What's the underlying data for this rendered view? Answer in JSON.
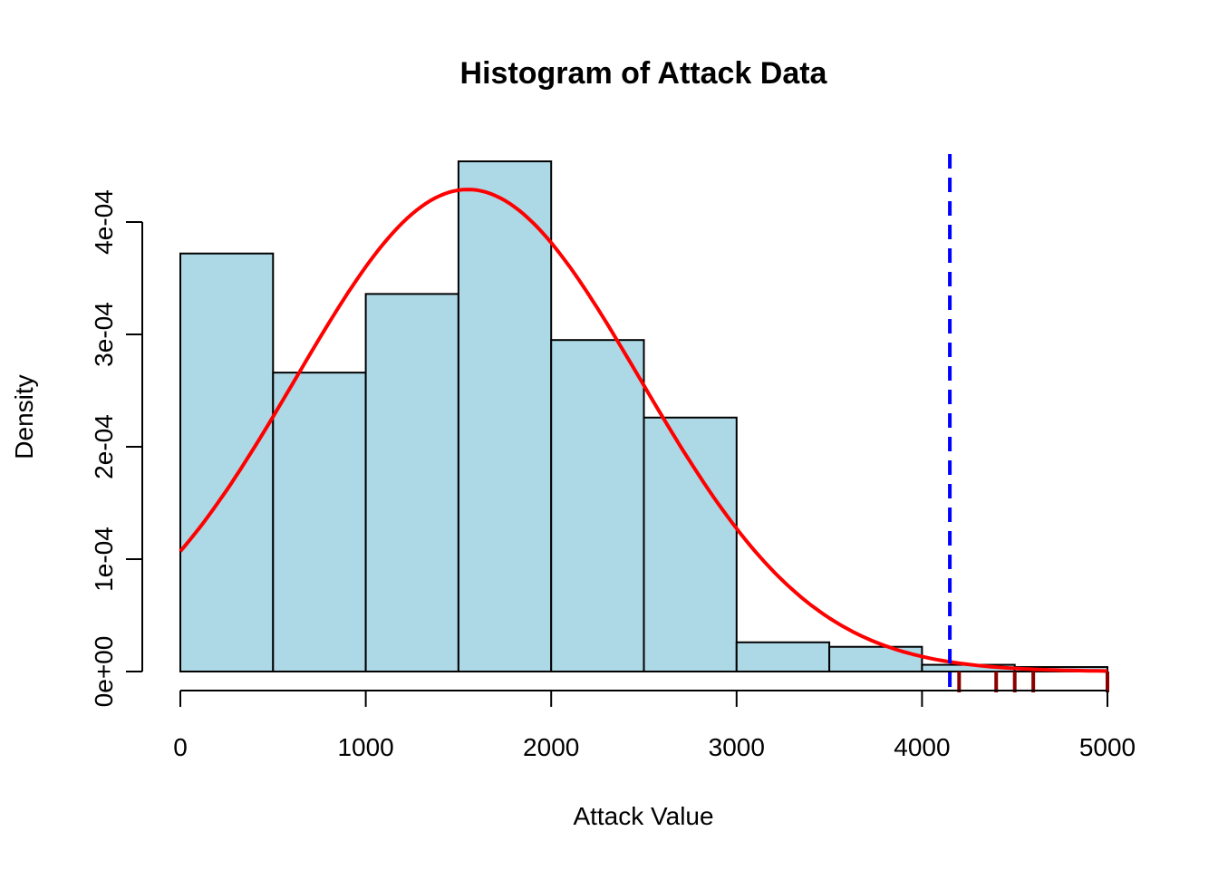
{
  "chart_data": {
    "type": "bar",
    "title": "Histogram of Attack Data",
    "xlabel": "Attack Value",
    "ylabel": "Density",
    "xlim": [
      0,
      5000
    ],
    "ylim": [
      0,
      0.00045
    ],
    "bins": [
      {
        "x0": 0,
        "x1": 500,
        "density": 0.000372
      },
      {
        "x0": 500,
        "x1": 1000,
        "density": 0.000266
      },
      {
        "x0": 1000,
        "x1": 1500,
        "density": 0.000336
      },
      {
        "x0": 1500,
        "x1": 2000,
        "density": 0.000454
      },
      {
        "x0": 2000,
        "x1": 2500,
        "density": 0.000295
      },
      {
        "x0": 2500,
        "x1": 3000,
        "density": 0.000226
      },
      {
        "x0": 3000,
        "x1": 3500,
        "density": 2.6e-05
      },
      {
        "x0": 3500,
        "x1": 4000,
        "density": 2.2e-05
      },
      {
        "x0": 4000,
        "x1": 4500,
        "density": 6e-06
      },
      {
        "x0": 4500,
        "x1": 5000,
        "density": 4e-06
      }
    ],
    "x_ticks": [
      0,
      1000,
      2000,
      3000,
      4000,
      5000
    ],
    "x_tick_labels": [
      "0",
      "1000",
      "2000",
      "3000",
      "4000",
      "5000"
    ],
    "y_ticks": [
      0,
      0.0001,
      0.0002,
      0.0003,
      0.0004
    ],
    "y_tick_labels": [
      "0e+00",
      "1e-04",
      "2e-04",
      "3e-04",
      "4e-04"
    ],
    "density_curve": {
      "type": "normal",
      "mean": 1550,
      "sd": 930,
      "x_range": [
        0,
        5000
      ]
    },
    "threshold_line": {
      "x": 4150
    },
    "rug_points": [
      4200,
      4400,
      4500,
      4600,
      5000
    ],
    "colors": {
      "bar_fill": "#ADD8E6",
      "bar_stroke": "#000000",
      "curve": "#FF0000",
      "threshold": "#0000FF",
      "rug": "#8B0000"
    }
  }
}
